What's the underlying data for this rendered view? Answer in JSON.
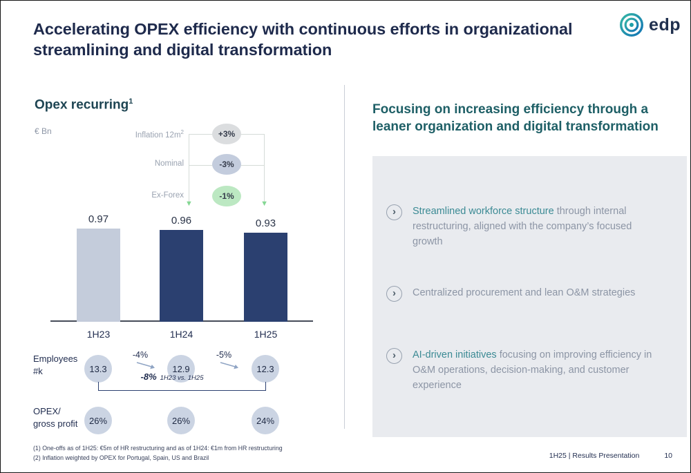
{
  "slide": {
    "title": "Accelerating OPEX efficiency with continuous efforts in organizational streamlining and digital transformation",
    "footer_label": "1H25 | Results Presentation",
    "page_number": "10"
  },
  "logo": {
    "brand": "edp"
  },
  "left": {
    "heading": "Opex recurring",
    "heading_footnote": "1",
    "unit": "€ Bn",
    "employees_label": [
      "Employees",
      "#k"
    ],
    "opex_label": [
      "OPEX/",
      "gross profit"
    ],
    "footnotes": [
      "(1) One-offs as of 1H25: €5m of HR restructuring and as of 1H24: €1m from HR restructuring",
      "(2) Inflation weighted by OPEX for Portugal, Spain, US and Brazil"
    ]
  },
  "chart_data": {
    "type": "bar",
    "title": "Opex recurring",
    "ylabel": "€ Bn",
    "categories": [
      "1H23",
      "1H24",
      "1H25"
    ],
    "values": [
      0.97,
      0.96,
      0.93
    ],
    "bar_colors": [
      "#C4CCDB",
      "#2B4070",
      "#2B4070"
    ],
    "ylim": [
      0,
      1.05
    ],
    "grid": false,
    "annotations": [
      {
        "label": "Inflation 12m",
        "label_sup": "2",
        "value": "+3%",
        "color": "#DBDDDF"
      },
      {
        "label": "Nominal",
        "value": "-3%",
        "color": "#C3CCDD"
      },
      {
        "label": "Ex-Forex",
        "value": "-1%",
        "color": "#BCE8C2"
      }
    ],
    "secondary_rows": [
      {
        "name": "Employees #k",
        "values": [
          13.3,
          12.9,
          12.3
        ],
        "deltas": [
          "-4%",
          "-5%"
        ],
        "overall_pct": "-8%",
        "overall_caption": "1H23 vs. 1H25"
      },
      {
        "name": "OPEX/gross profit",
        "values": [
          "26%",
          "26%",
          "24%"
        ]
      }
    ]
  },
  "right": {
    "heading": "Focusing on increasing efficiency through a leaner organization and digital transformation",
    "bullets": [
      {
        "segments": [
          {
            "text": "Streamlined workforce structure ",
            "accent": true
          },
          {
            "text": "through internal restructuring, aligned with the company’s focused growth",
            "accent": false
          }
        ]
      },
      {
        "segments": [
          {
            "text": "Centralized procurement and lean O&M strategies",
            "accent": false
          }
        ]
      },
      {
        "segments": [
          {
            "text": "AI-driven initiatives ",
            "accent": true
          },
          {
            "text": "focusing on improving efficiency in O&M operations, decision-making, and customer experience",
            "accent": false
          }
        ]
      }
    ]
  },
  "colors": {
    "navy": "#222E50",
    "teal_heading": "#1E5F66",
    "accent_text": "#3B8A94",
    "panel_bg": "#E9EBEF",
    "green_badge": "#BCE8C2"
  }
}
